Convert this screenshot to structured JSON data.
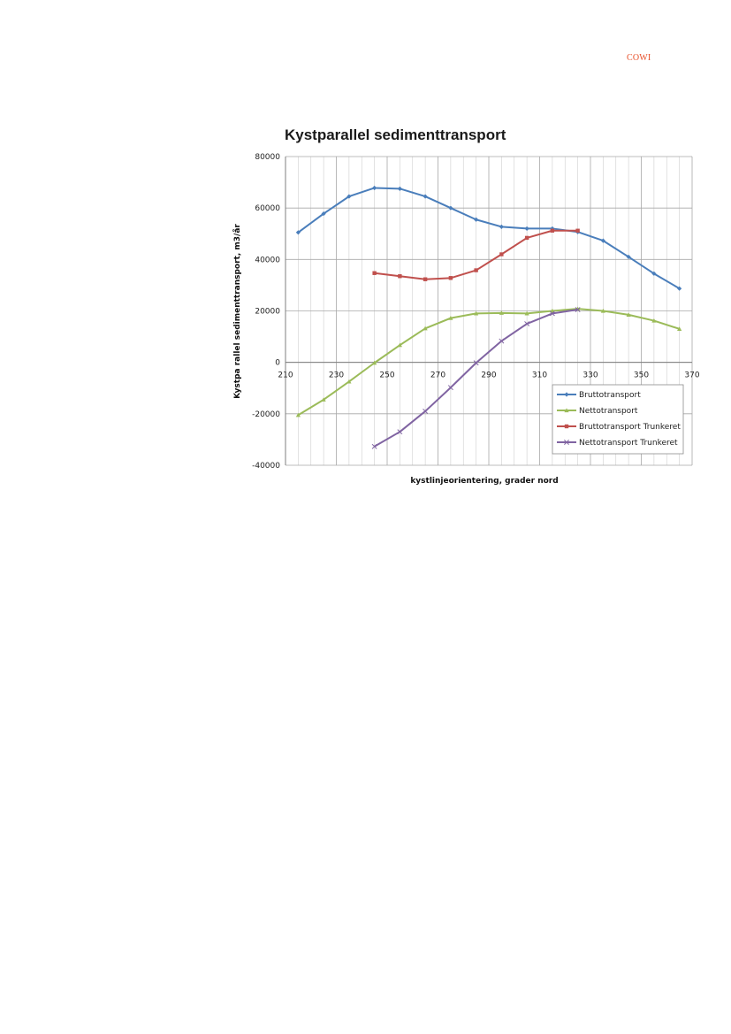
{
  "header": {
    "logo_text": "COWI"
  },
  "chart_data": {
    "type": "line",
    "title": "Kystparallel sedimenttransport",
    "xlabel": "kystlinjeorientering, grader nord",
    "ylabel": "Kystpa rallel sedimenttransport, m3/år",
    "xlim": [
      210,
      370
    ],
    "ylim": [
      -40000,
      80000
    ],
    "x_ticks": [
      210,
      230,
      250,
      270,
      290,
      310,
      330,
      350,
      370
    ],
    "y_ticks": [
      -40000,
      -20000,
      0,
      20000,
      40000,
      60000,
      80000
    ],
    "x_ticks_labels": [
      "210",
      "230",
      "250",
      "270",
      "290",
      "310",
      "330",
      "350",
      "370"
    ],
    "y_ticks_labels": [
      "-40000",
      "-20000",
      "0",
      "20000",
      "40000",
      "60000",
      "80000"
    ],
    "grid": true,
    "legend_position": "bottom-right",
    "series": [
      {
        "name": "Bruttotransport",
        "color": "#4a7ebb",
        "marker": "diamond",
        "x": [
          215,
          225,
          235,
          245,
          255,
          265,
          275,
          285,
          295,
          305,
          315,
          325,
          335,
          345,
          355,
          365
        ],
        "y": [
          50500,
          57800,
          64500,
          67800,
          67500,
          64500,
          60000,
          55500,
          52700,
          52000,
          52000,
          50700,
          47300,
          41000,
          34500,
          28700
        ]
      },
      {
        "name": "Nettotransport",
        "color": "#9bbb59",
        "marker": "triangle",
        "x": [
          215,
          225,
          235,
          245,
          255,
          265,
          275,
          285,
          295,
          305,
          315,
          325,
          335,
          345,
          355,
          365
        ],
        "y": [
          -20500,
          -14500,
          -7500,
          -200,
          6700,
          13200,
          17200,
          19000,
          19200,
          19000,
          20000,
          20800,
          20000,
          18500,
          16200,
          13000
        ]
      },
      {
        "name": "Bruttotransport Trunkeret",
        "color": "#c0504d",
        "marker": "square",
        "x": [
          245,
          255,
          265,
          275,
          285,
          295,
          305,
          315,
          325
        ],
        "y": [
          34700,
          33500,
          32300,
          32800,
          35800,
          42000,
          48400,
          51200,
          51200
        ]
      },
      {
        "name": "Nettotransport Trunkeret",
        "color": "#8064a2",
        "marker": "x",
        "x": [
          245,
          255,
          265,
          275,
          285,
          295,
          305,
          315,
          325
        ],
        "y": [
          -32700,
          -27000,
          -19000,
          -9800,
          -200,
          8300,
          15000,
          19000,
          20500
        ]
      }
    ]
  }
}
